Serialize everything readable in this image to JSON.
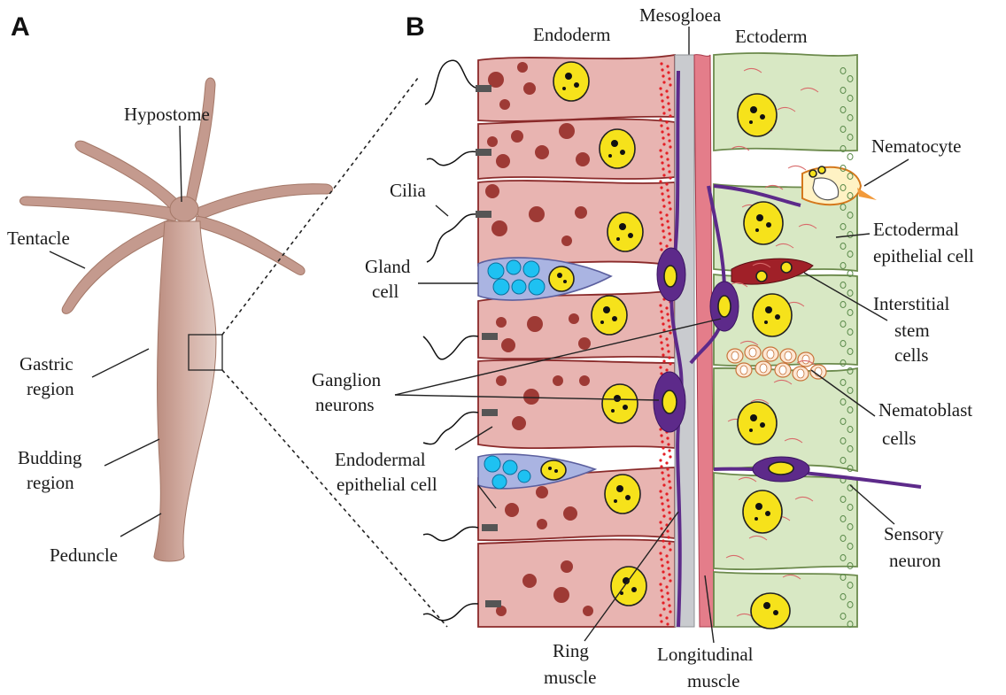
{
  "panels": {
    "a": "A",
    "b": "B"
  },
  "labels": {
    "hypostome": "Hypostome",
    "tentacle": "Tentacle",
    "gastric_1": "Gastric",
    "gastric_2": "region",
    "budding_1": "Budding",
    "budding_2": "region",
    "peduncle": "Peduncle",
    "endoderm": "Endoderm",
    "mesogloea": "Mesogloea",
    "ectoderm": "Ectoderm",
    "cilia": "Cilia",
    "gland_1": "Gland",
    "gland_2": "cell",
    "ganglion_1": "Ganglion",
    "ganglion_2": "neurons",
    "endo_epi_1": "Endodermal",
    "endo_epi_2": "epithelial cell",
    "nematocyte": "Nematocyte",
    "ecto_epi_1": "Ectodermal",
    "ecto_epi_2": "epithelial cell",
    "interstitial_1": "Interstitial",
    "interstitial_2": "stem",
    "interstitial_3": "cells",
    "nematoblast_1": "Nematoblast",
    "nematoblast_2": "cells",
    "sensory_1": "Sensory",
    "sensory_2": "neuron",
    "ring_1": "Ring",
    "ring_2": "muscle",
    "longitudinal_1": "Longitudinal",
    "longitudinal_2": "muscle"
  },
  "colors": {
    "body": "#c49a8e",
    "endoderm": "#e8b4b1",
    "ectoderm": "#d8e8c4",
    "mesogloea": "#c9cbcf",
    "nucleus": "#f6e21b",
    "neuron": "#5d2a8a",
    "gland_vesicle": "#1ec1f2"
  }
}
